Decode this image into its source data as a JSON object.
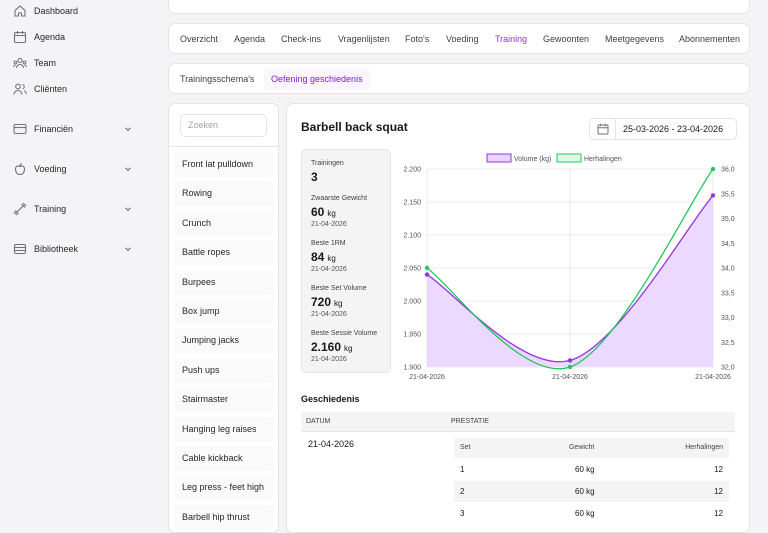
{
  "sidebar": {
    "items": [
      {
        "label": "Dashboard",
        "icon": "home-icon"
      },
      {
        "label": "Agenda",
        "icon": "calendar-icon"
      },
      {
        "label": "Team",
        "icon": "team-icon"
      },
      {
        "label": "Cliënten",
        "icon": "users-icon"
      },
      {
        "label": "Financiën",
        "icon": "wallet-icon"
      },
      {
        "label": "Voeding",
        "icon": "apple-icon"
      },
      {
        "label": "Training",
        "icon": "dumbbell-icon"
      },
      {
        "label": "Bibliotheek",
        "icon": "library-icon"
      }
    ]
  },
  "tabs": [
    "Overzicht",
    "Agenda",
    "Check-ins",
    "Vragenlijsten",
    "Foto's",
    "Voeding",
    "Training",
    "Gewoonten",
    "Meetgegevens",
    "Abonnementen"
  ],
  "active_tab": "Training",
  "subtabs": [
    "Trainingsschema's",
    "Oefening geschiedenis"
  ],
  "active_subtab": "Oefening geschiedenis",
  "search": {
    "placeholder": "Zoeken"
  },
  "exercises": [
    "Front lat pulldown",
    "Rowing",
    "Crunch",
    "Battle ropes",
    "Burpees",
    "Box jump",
    "Jumping jacks",
    "Push ups",
    "Stairmaster",
    "Hanging leg raises",
    "Cable kickback",
    "Leg press - feet high",
    "Barbell hip thrust"
  ],
  "detail": {
    "title": "Barbell back squat",
    "date_range": "25-03-2026 - 23-04-2026",
    "stats": {
      "trainingen_label": "Trainingen",
      "trainingen_value": "3",
      "zwaarste_label": "Zwaarste Gewicht",
      "zwaarste_value": "60",
      "zwaarste_unit": "kg",
      "zwaarste_date": "21-04-2026",
      "rm_label": "Beste 1RM",
      "rm_value": "84",
      "rm_unit": "kg",
      "rm_date": "21-04-2026",
      "set_label": "Beste Set Volume",
      "set_value": "720",
      "set_unit": "kg",
      "set_date": "21-04-2026",
      "sessie_label": "Beste Sessie Volume",
      "sessie_value": "2.160",
      "sessie_unit": "kg",
      "sessie_date": "21-04-2026"
    },
    "history": {
      "title": "Geschiedenis",
      "col_datum": "DATUM",
      "col_prestatie": "PRESTATIE",
      "date": "21-04-2026",
      "sub_headers": {
        "set": "Set",
        "gewicht": "Gewicht",
        "herhalingen": "Herhalingen"
      },
      "rows": [
        {
          "set": "1",
          "gewicht": "60 kg",
          "herhalingen": "12"
        },
        {
          "set": "2",
          "gewicht": "60 kg",
          "herhalingen": "12"
        },
        {
          "set": "3",
          "gewicht": "60 kg",
          "herhalingen": "12"
        }
      ]
    }
  },
  "chart_data": {
    "type": "area",
    "x": [
      "21-04-2026",
      "21-04-2026",
      "21-04-2026"
    ],
    "series": [
      {
        "name": "Volume (kg)",
        "axis": "left",
        "color": "#9333ea",
        "values": [
          2040,
          1910,
          2160
        ]
      },
      {
        "name": "Herhalingen",
        "axis": "right",
        "color": "#22c55e",
        "values": [
          34.0,
          32.0,
          36.0
        ]
      }
    ],
    "y_left": {
      "min": 1900,
      "max": 2200,
      "ticks": [
        "1.900",
        "1.950",
        "2.000",
        "2.050",
        "2.100",
        "2.150",
        "2.200"
      ]
    },
    "y_right": {
      "min": 32.0,
      "max": 36.0,
      "ticks": [
        "32,0",
        "32,5",
        "33,0",
        "33,5",
        "34,0",
        "34,5",
        "35,0",
        "35,5",
        "36,0"
      ]
    },
    "x_ticks": [
      "21-04-2026",
      "21-04-2026",
      "21-04-2026"
    ],
    "legend": "top",
    "grid": true
  }
}
